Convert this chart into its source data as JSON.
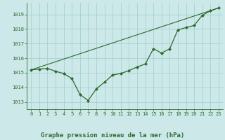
{
  "line1_x": [
    0,
    1,
    2,
    3,
    4,
    5,
    6,
    7,
    8,
    9,
    10,
    11,
    12,
    13,
    14,
    15,
    16,
    17,
    18,
    19,
    20,
    21,
    22,
    23
  ],
  "line1_y": [
    1015.2,
    1015.25,
    1015.3,
    1015.1,
    1014.95,
    1014.6,
    1013.5,
    1013.1,
    1013.9,
    1014.35,
    1014.85,
    1014.95,
    1015.15,
    1015.4,
    1015.6,
    1016.65,
    1016.35,
    1016.65,
    1017.95,
    1018.1,
    1018.25,
    1018.95,
    1019.25,
    1019.45
  ],
  "line2_x": [
    0,
    23
  ],
  "line2_y": [
    1015.2,
    1019.45
  ],
  "line_color": "#2d6a2d",
  "bg_color": "#cce8e8",
  "grid_color": "#9ecece",
  "xlabel": "Graphe pression niveau de la mer (hPa)",
  "xlabel_color": "#2d6a2d",
  "xlim": [
    -0.5,
    23.5
  ],
  "ylim": [
    1012.5,
    1019.8
  ],
  "yticks": [
    1013,
    1014,
    1015,
    1016,
    1017,
    1018,
    1019
  ],
  "xticks": [
    0,
    1,
    2,
    3,
    4,
    5,
    6,
    7,
    8,
    9,
    10,
    11,
    12,
    13,
    14,
    15,
    16,
    17,
    18,
    19,
    20,
    21,
    22,
    23
  ],
  "tick_fontsize": 5.0,
  "xlabel_fontsize": 6.5,
  "marker": "D",
  "markersize": 2.2,
  "linewidth": 0.9,
  "line2_linewidth": 0.8
}
